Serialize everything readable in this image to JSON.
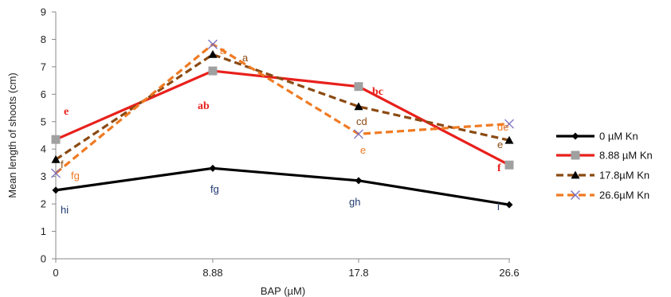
{
  "chart_data": {
    "type": "line",
    "xlabel": "BAP (µM)",
    "ylabel": "Mean length of shoots (cm)",
    "categories": [
      "0",
      "8.88",
      "17.8",
      "26.6"
    ],
    "ylim": [
      0,
      9
    ],
    "yticks": [
      0,
      1,
      2,
      3,
      4,
      5,
      6,
      7,
      8,
      9
    ],
    "grid": false,
    "legend_position": "right",
    "series": [
      {
        "name": "0 µM Kn",
        "values": [
          2.5,
          3.3,
          2.85,
          1.97
        ],
        "color": "#000000",
        "dash": "solid",
        "marker": "diamond",
        "labels": [
          "hi",
          "fg",
          "gh",
          "i"
        ]
      },
      {
        "name": "8.88 µM Kn",
        "values": [
          4.35,
          6.85,
          6.28,
          3.42
        ],
        "color": "#e8201c",
        "dash": "solid",
        "marker": "square",
        "labels": [
          "e",
          "ab",
          "bc",
          "f"
        ]
      },
      {
        "name": "17.8µM Kn",
        "values": [
          3.62,
          7.45,
          5.55,
          4.32
        ],
        "color": "#8b4a12",
        "dash": "dashed",
        "marker": "triangle",
        "labels": [
          "f",
          "a",
          "cd",
          "e"
        ]
      },
      {
        "name": "26.6µM Kn",
        "values": [
          3.12,
          7.82,
          4.55,
          4.92
        ],
        "color": "#f07a22",
        "dash": "dashed",
        "marker": "x",
        "labels": [
          "fg",
          "a",
          "e",
          "de"
        ]
      }
    ]
  }
}
